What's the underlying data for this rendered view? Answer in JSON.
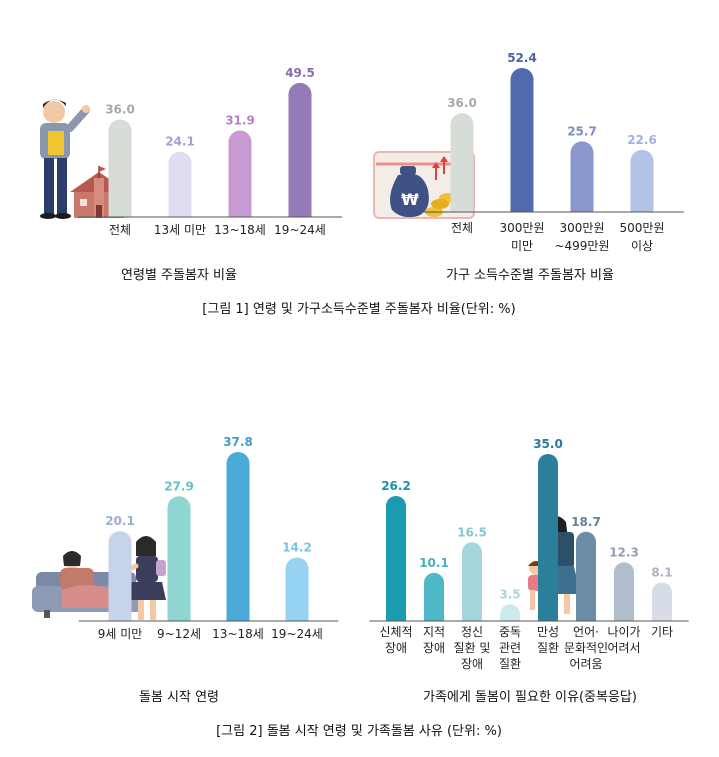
{
  "figure_1": {
    "caption": "[그림 1] 연령 및 가구소득수준별 주돌봄자 비율(단위: %)"
  },
  "figure_2": {
    "caption": "[그림 2] 돌봄 시작 연령 및 가족돌봄 사유 (단위: %)"
  },
  "chart_data": [
    {
      "type": "bar",
      "title": "연령별 주돌봄자 비율",
      "categories": [
        [
          "전체"
        ],
        [
          "13세 미만"
        ],
        [
          "13~18세"
        ],
        [
          "19~24세"
        ]
      ],
      "values": [
        36.0,
        24.1,
        31.9,
        49.5
      ],
      "value_labels": [
        "36.0",
        "24.1",
        "31.9",
        "49.5"
      ],
      "colors": [
        "#d6ddd6",
        "#dedcf0",
        "#c79bd1",
        "#957ab8"
      ],
      "label_colors": [
        "#a5aaa5",
        "#a99ed0",
        "#b77fc4",
        "#8a6bb1"
      ],
      "grid": false,
      "ylim": [
        0,
        52.4
      ]
    },
    {
      "type": "bar",
      "title": "가구 소득수준별 주돌봄자 비율",
      "categories": [
        [
          "전체"
        ],
        [
          "300만원",
          "미만"
        ],
        [
          "300만원",
          "~499만원"
        ],
        [
          "500만원",
          "이상"
        ]
      ],
      "values": [
        36.0,
        52.4,
        25.7,
        22.6
      ],
      "value_labels": [
        "36.0",
        "52.4",
        "25.7",
        "22.6"
      ],
      "colors": [
        "#d6ddd6",
        "#516aaf",
        "#8a97cd",
        "#b2c3e6"
      ],
      "label_colors": [
        "#a5aaa5",
        "#4d62a6",
        "#7f8cc4",
        "#9fb1dc"
      ],
      "grid": false,
      "ylim": [
        0,
        52.4
      ]
    },
    {
      "type": "bar",
      "title": "돌봄 시작 연령",
      "categories": [
        [
          "9세 미만"
        ],
        [
          "9~12세"
        ],
        [
          "13~18세"
        ],
        [
          "19~24세"
        ]
      ],
      "values": [
        20.1,
        27.9,
        37.8,
        14.2
      ],
      "value_labels": [
        "20.1",
        "27.9",
        "37.8",
        "14.2"
      ],
      "colors": [
        "#c6d3e9",
        "#8fd6d3",
        "#4aaad8",
        "#96d2f1"
      ],
      "label_colors": [
        "#9dacd0",
        "#64c3c0",
        "#3f9dcc",
        "#79c3e8"
      ],
      "grid": false,
      "ylim": [
        0,
        37.8
      ]
    },
    {
      "type": "bar",
      "title": "가족에게 돌봄이 필요한 이유(중복응답)",
      "categories": [
        [
          "신체적",
          "장애"
        ],
        [
          "지적",
          "장애"
        ],
        [
          "정신",
          "질환 및",
          "장애"
        ],
        [
          "중독",
          "관련",
          "질환"
        ],
        [
          "만성",
          "질환"
        ],
        [
          "언어·",
          "문화적인",
          "어려움"
        ],
        [
          "나이가",
          "어려서"
        ],
        [
          "기타"
        ]
      ],
      "values": [
        26.2,
        10.1,
        16.5,
        3.5,
        35.0,
        18.7,
        12.3,
        8.1
      ],
      "value_labels": [
        "26.2",
        "10.1",
        "16.5",
        "3.5",
        "35.0",
        "18.7",
        "12.3",
        "8.1"
      ],
      "colors": [
        "#1a9bb0",
        "#4fb8c6",
        "#a6d7df",
        "#cde9ec",
        "#2c7f9b",
        "#6b8ea6",
        "#afbdcc",
        "#d7dde6"
      ],
      "label_colors": [
        "#1593a8",
        "#45b0be",
        "#86c8d1",
        "#a8d6dc",
        "#2a7a96",
        "#5f839c",
        "#8ea0b3",
        "#a9b3c2"
      ],
      "grid": false,
      "ylim": [
        0,
        35.0
      ]
    }
  ]
}
